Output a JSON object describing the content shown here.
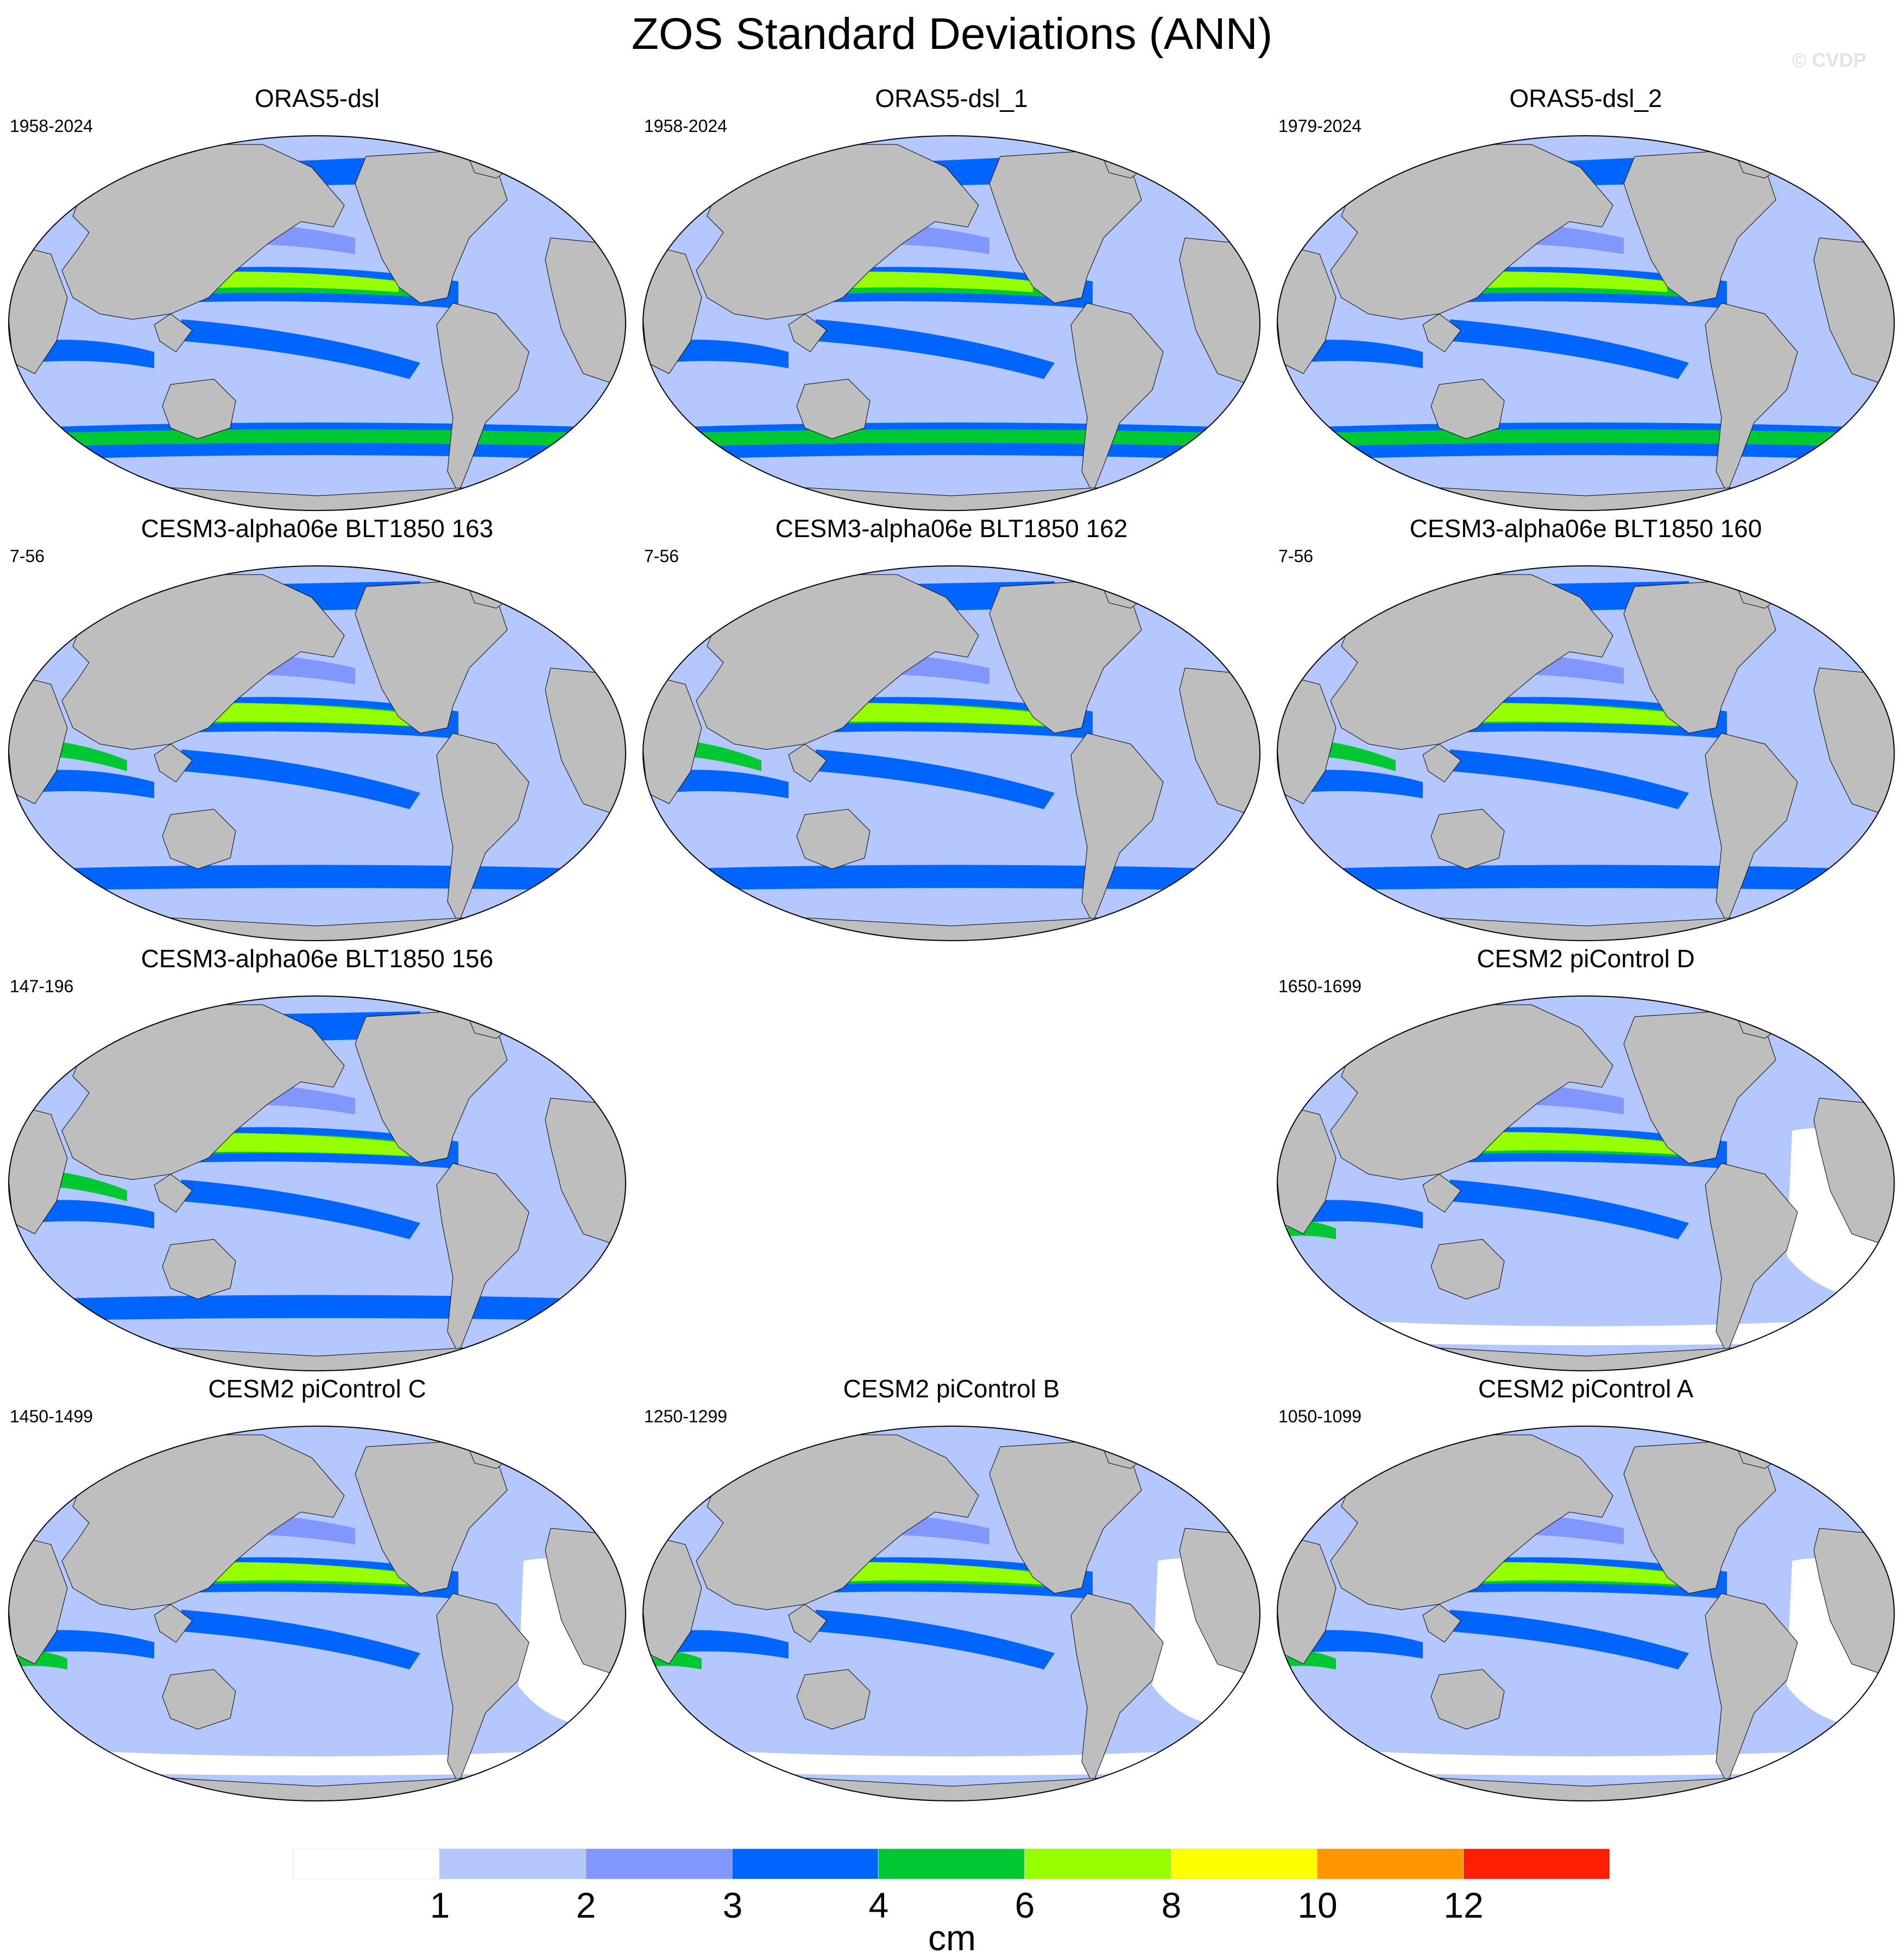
{
  "title": "ZOS Standard Deviations (ANN)",
  "watermark": "© CVDP",
  "panels": [
    {
      "title": "ORAS5-dsl",
      "period": "1958-2024",
      "style": "obs"
    },
    {
      "title": "ORAS5-dsl_1",
      "period": "1958-2024",
      "style": "obs"
    },
    {
      "title": "ORAS5-dsl_2",
      "period": "1979-2024",
      "style": "obs"
    },
    {
      "title": "CESM3-alpha06e BLT1850 163",
      "period": "7-56",
      "style": "model"
    },
    {
      "title": "CESM3-alpha06e BLT1850 162",
      "period": "7-56",
      "style": "model"
    },
    {
      "title": "CESM3-alpha06e BLT1850 160",
      "period": "7-56",
      "style": "model"
    },
    {
      "title": "CESM3-alpha06e BLT1850 156",
      "period": "147-196",
      "style": "model"
    },
    {
      "title": "CESM2 piControl D",
      "period": "1650-1699",
      "style": "control"
    },
    {
      "title": "CESM2 piControl C",
      "period": "1450-1499",
      "style": "control"
    },
    {
      "title": "CESM2 piControl B",
      "period": "1250-1299",
      "style": "control"
    },
    {
      "title": "CESM2 piControl A",
      "period": "1050-1099",
      "style": "control"
    }
  ],
  "colorbar": {
    "units": "cm",
    "labels": [
      "1",
      "2",
      "3",
      "4",
      "6",
      "8",
      "10",
      "12"
    ],
    "colors": [
      "#ffffff",
      "#b4c8ff",
      "#8296ff",
      "#0064ff",
      "#00c832",
      "#96ff00",
      "#ffff00",
      "#ff9600",
      "#ff1e00"
    ]
  },
  "colors": {
    "land": "#bebebe",
    "ocean_background": "#b4c8ff",
    "coastline": "#000000"
  }
}
